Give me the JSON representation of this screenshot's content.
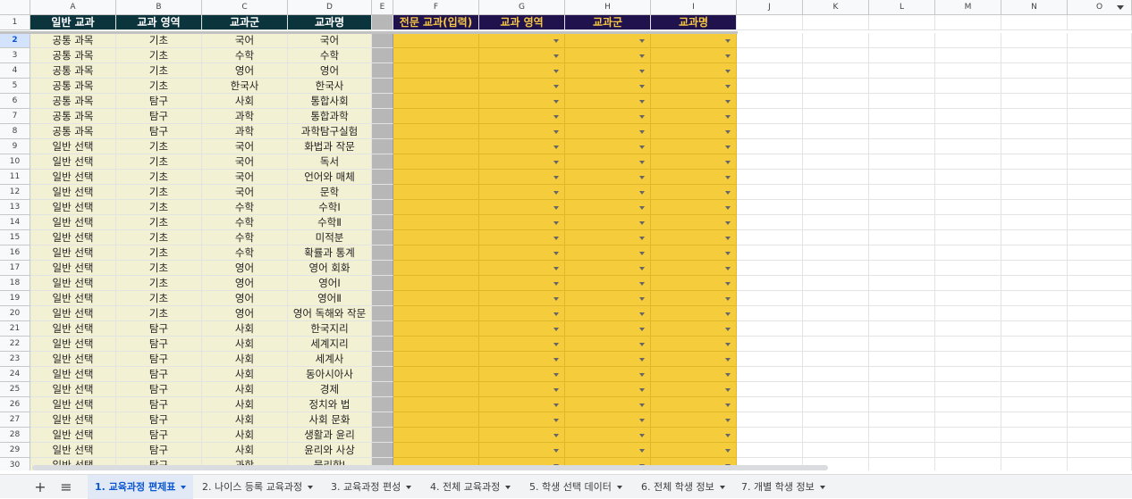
{
  "column_letters": [
    "A",
    "B",
    "C",
    "D",
    "E",
    "F",
    "G",
    "H",
    "I",
    "J",
    "K",
    "L",
    "M",
    "N",
    "O"
  ],
  "header_row": {
    "number": "1",
    "cells": [
      "일반 교과",
      "교과 영역",
      "교과군",
      "교과명",
      "",
      "전문 교과(입력)",
      "교과 영역",
      "교과군",
      "교과명"
    ]
  },
  "rows": [
    {
      "n": "2",
      "a": "공통 과목",
      "b": "기초",
      "c": "국어",
      "d": "국어"
    },
    {
      "n": "3",
      "a": "공통 과목",
      "b": "기초",
      "c": "수학",
      "d": "수학"
    },
    {
      "n": "4",
      "a": "공통 과목",
      "b": "기초",
      "c": "영어",
      "d": "영어"
    },
    {
      "n": "5",
      "a": "공통 과목",
      "b": "기초",
      "c": "한국사",
      "d": "한국사"
    },
    {
      "n": "6",
      "a": "공통 과목",
      "b": "탐구",
      "c": "사회",
      "d": "통합사회"
    },
    {
      "n": "7",
      "a": "공통 과목",
      "b": "탐구",
      "c": "과학",
      "d": "통합과학"
    },
    {
      "n": "8",
      "a": "공통 과목",
      "b": "탐구",
      "c": "과학",
      "d": "과학탐구실험"
    },
    {
      "n": "9",
      "a": "일반 선택",
      "b": "기초",
      "c": "국어",
      "d": "화법과 작문"
    },
    {
      "n": "10",
      "a": "일반 선택",
      "b": "기초",
      "c": "국어",
      "d": "독서"
    },
    {
      "n": "11",
      "a": "일반 선택",
      "b": "기초",
      "c": "국어",
      "d": "언어와 매체"
    },
    {
      "n": "12",
      "a": "일반 선택",
      "b": "기초",
      "c": "국어",
      "d": "문학"
    },
    {
      "n": "13",
      "a": "일반 선택",
      "b": "기초",
      "c": "수학",
      "d": "수학Ⅰ"
    },
    {
      "n": "14",
      "a": "일반 선택",
      "b": "기초",
      "c": "수학",
      "d": "수학Ⅱ"
    },
    {
      "n": "15",
      "a": "일반 선택",
      "b": "기초",
      "c": "수학",
      "d": "미적분"
    },
    {
      "n": "16",
      "a": "일반 선택",
      "b": "기초",
      "c": "수학",
      "d": "확률과 통계"
    },
    {
      "n": "17",
      "a": "일반 선택",
      "b": "기초",
      "c": "영어",
      "d": "영어 회화"
    },
    {
      "n": "18",
      "a": "일반 선택",
      "b": "기초",
      "c": "영어",
      "d": "영어Ⅰ"
    },
    {
      "n": "19",
      "a": "일반 선택",
      "b": "기초",
      "c": "영어",
      "d": "영어Ⅱ"
    },
    {
      "n": "20",
      "a": "일반 선택",
      "b": "기초",
      "c": "영어",
      "d": "영어 독해와 작문"
    },
    {
      "n": "21",
      "a": "일반 선택",
      "b": "탐구",
      "c": "사회",
      "d": "한국지리"
    },
    {
      "n": "22",
      "a": "일반 선택",
      "b": "탐구",
      "c": "사회",
      "d": "세계지리"
    },
    {
      "n": "23",
      "a": "일반 선택",
      "b": "탐구",
      "c": "사회",
      "d": "세계사"
    },
    {
      "n": "24",
      "a": "일반 선택",
      "b": "탐구",
      "c": "사회",
      "d": "동아시아사"
    },
    {
      "n": "25",
      "a": "일반 선택",
      "b": "탐구",
      "c": "사회",
      "d": "경제"
    },
    {
      "n": "26",
      "a": "일반 선택",
      "b": "탐구",
      "c": "사회",
      "d": "정치와 법"
    },
    {
      "n": "27",
      "a": "일반 선택",
      "b": "탐구",
      "c": "사회",
      "d": "사회 문화"
    },
    {
      "n": "28",
      "a": "일반 선택",
      "b": "탐구",
      "c": "사회",
      "d": "생활과 윤리"
    },
    {
      "n": "29",
      "a": "일반 선택",
      "b": "탐구",
      "c": "사회",
      "d": "윤리와 사상"
    },
    {
      "n": "30",
      "a": "일반 선택",
      "b": "탐구",
      "c": "과학",
      "d": "물리학Ⅰ"
    }
  ],
  "sheet_tabs": [
    {
      "label": "1. 교육과정 편제표",
      "active": true
    },
    {
      "label": "2. 나이스 등록 교육과정",
      "active": false
    },
    {
      "label": "3. 교육과정 편성",
      "active": false
    },
    {
      "label": "4. 전체 교육과정",
      "active": false
    },
    {
      "label": "5. 학생 선택 데이터",
      "active": false
    },
    {
      "label": "6. 전체 학생 정보",
      "active": false
    },
    {
      "label": "7. 개별 학생 정보",
      "active": false
    }
  ],
  "toolbar": {
    "add_sheet_symbol": "+",
    "all_sheets_symbol": "≡"
  },
  "colors": {
    "header_dark": "#0c343d",
    "header_navy": "#20124d",
    "header_navy_text": "#f6c744",
    "data_cream": "#f3f1d3",
    "input_yellow": "#f4cc3c",
    "separator_gray": "#b7b7b7",
    "active_tab": "#0b57d0"
  }
}
